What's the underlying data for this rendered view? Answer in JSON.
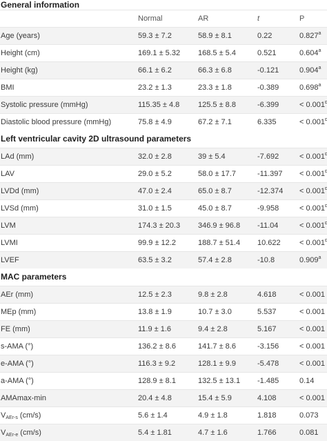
{
  "sections": [
    {
      "title": "General information",
      "header": {
        "c1": "",
        "c2": "Normal",
        "c3": "AR",
        "c4": "t",
        "c5": "P"
      },
      "rows": [
        {
          "label": "Age (years)",
          "normal": "59.3 ± 7.2",
          "ar": "58.9 ± 8.1",
          "t": "0.22",
          "p": "0.827",
          "p_sup": "a"
        },
        {
          "label": "Height (cm)",
          "normal": "169.1 ± 5.32",
          "ar": "168.5 ± 5.4",
          "t": "0.521",
          "p": "0.604",
          "p_sup": "a"
        },
        {
          "label": "Height (kg)",
          "normal": "66.1 ± 6.2",
          "ar": "66.3 ± 6.8",
          "t": "-0.121",
          "p": "0.904",
          "p_sup": "a"
        },
        {
          "label": "BMI",
          "normal": "23.2 ± 1.3",
          "ar": "23.3 ± 1.8",
          "t": "-0.389",
          "p": "0.698",
          "p_sup": "a"
        },
        {
          "label": "Systolic pressure (mmHg)",
          "normal": "115.35 ± 4.8",
          "ar": "125.5 ± 8.8",
          "t": "-6.399",
          "p": "< 0.001",
          "p_sup": "b"
        },
        {
          "label": "Diastolic blood pressure (mmHg)",
          "normal": "75.8 ± 4.9",
          "ar": "67.2 ± 7.1",
          "t": "6.335",
          "p": "< 0.001",
          "p_sup": "b"
        }
      ]
    },
    {
      "title": "Left ventricular cavity 2D ultrasound parameters",
      "rows": [
        {
          "label": "LAd (mm)",
          "normal": "32.0 ± 2.8",
          "ar": "39 ± 5.4",
          "t": "-7.692",
          "p": "< 0.001",
          "p_sup": "b"
        },
        {
          "label": "LAV",
          "normal": "29.0 ± 5.2",
          "ar": "58.0 ± 17.7",
          "t": "-11.397",
          "p": "< 0.001",
          "p_sup": "b"
        },
        {
          "label": "LVDd (mm)",
          "normal": "47.0 ± 2.4",
          "ar": "65.0 ± 8.7",
          "t": "-12.374",
          "p": "< 0.001",
          "p_sup": "b"
        },
        {
          "label": "LVSd (mm)",
          "normal": "31.0 ± 1.5",
          "ar": "45.0 ± 8.7",
          "t": "-9.958",
          "p": "< 0.001",
          "p_sup": "b"
        },
        {
          "label": "LVM",
          "normal": "174.3 ± 20.3",
          "ar": "346.9 ± 96.8",
          "t": "-11.04",
          "p": "< 0.001",
          "p_sup": "b"
        },
        {
          "label": "LVMI",
          "normal": "99.9 ± 12.2",
          "ar": "188.7 ± 51.4",
          "t": "10.622",
          "p": "< 0.001",
          "p_sup": "b"
        },
        {
          "label": "LVEF",
          "normal": "63.5 ± 3.2",
          "ar": "57.4 ± 2.8",
          "t": "-10.8",
          "p": "0.909",
          "p_sup": "a"
        }
      ]
    },
    {
      "title": "MAC parameters",
      "rows": [
        {
          "label": "AEr (mm)",
          "normal": "12.5 ± 2.3",
          "ar": "9.8 ± 2.8",
          "t": "4.618",
          "p": "< 0.001",
          "p_sup": ""
        },
        {
          "label": "MEp (mm)",
          "normal": "13.8 ± 1.9",
          "ar": "10.7 ± 3.0",
          "t": "5.537",
          "p": "< 0.001",
          "p_sup": ""
        },
        {
          "label": "FE (mm)",
          "normal": "11.9 ± 1.6",
          "ar": "9.4 ± 2.8",
          "t": "5.167",
          "p": "< 0.001",
          "p_sup": ""
        },
        {
          "label": "s-AMA (°)",
          "normal": "136.2 ± 8.6",
          "ar": "141.7 ± 8.6",
          "t": "-3.156",
          "p": "< 0.001",
          "p_sup": ""
        },
        {
          "label": "e-AMA (°)",
          "normal": "116.3 ± 9.2",
          "ar": "128.1 ± 9.9",
          "t": "-5.478",
          "p": "< 0.001",
          "p_sup": ""
        },
        {
          "label": "a-AMA (°)",
          "normal": "128.9 ± 8.1",
          "ar": "132.5 ± 13.1",
          "t": "-1.485",
          "p": "0.14",
          "p_sup": ""
        },
        {
          "label": "AMAmax-min",
          "normal": "20.4 ± 4.8",
          "ar": "15.4 ± 5.9",
          "t": "4.108",
          "p": "< 0.001",
          "p_sup": ""
        },
        {
          "label_main": "V",
          "label_sub": "AEr-s",
          "label_tail": " (cm/s)",
          "normal": "5.6 ± 1.4",
          "ar": "4.9 ± 1.8",
          "t": "1.818",
          "p": "0.073",
          "p_sup": ""
        },
        {
          "label_main": "V",
          "label_sub": "AEr-e",
          "label_tail": " (cm/s)",
          "normal": "5.4 ± 1.81",
          "ar": "4.7 ± 1.6",
          "t": "1.766",
          "p": "0.081",
          "p_sup": ""
        }
      ]
    }
  ]
}
